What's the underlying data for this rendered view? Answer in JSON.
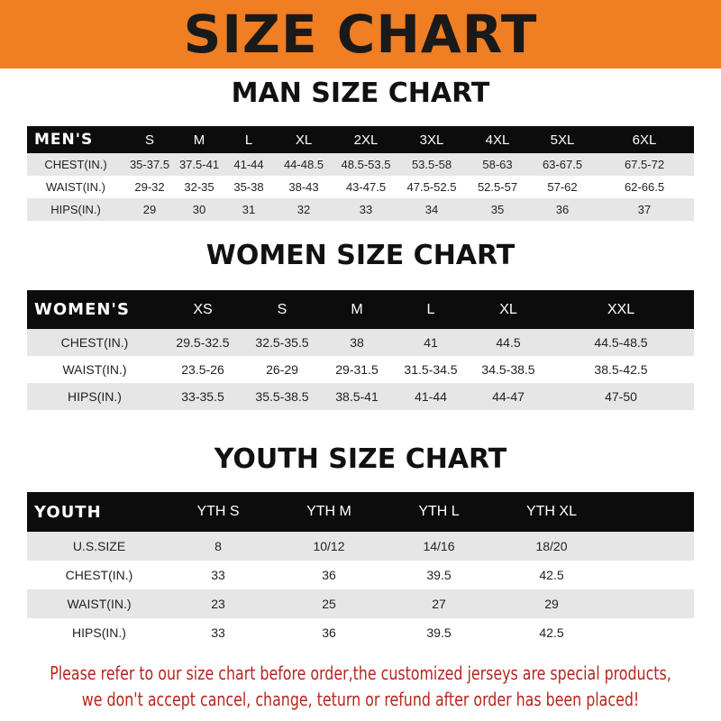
{
  "banner": "SIZE CHART",
  "men": {
    "title": "MAN SIZE CHART",
    "header": [
      "MEN'S",
      "S",
      "M",
      "L",
      "XL",
      "2XL",
      "3XL",
      "4XL",
      "5XL",
      "6XL"
    ],
    "rows": [
      [
        "CHEST(IN.)",
        "35-37.5",
        "37.5-41",
        "41-44",
        "44-48.5",
        "48.5-53.5",
        "53.5-58",
        "58-63",
        "63-67.5",
        "67.5-72"
      ],
      [
        "WAIST(IN.)",
        "29-32",
        "32-35",
        "35-38",
        "38-43",
        "43-47.5",
        "47.5-52.5",
        "52.5-57",
        "57-62",
        "62-66.5"
      ],
      [
        "HIPS(IN.)",
        "29",
        "30",
        "31",
        "32",
        "33",
        "34",
        "35",
        "36",
        "37"
      ]
    ]
  },
  "women": {
    "title": "WOMEN SIZE CHART",
    "header": [
      "WOMEN'S",
      "XS",
      "S",
      "M",
      "L",
      "XL",
      "XXL"
    ],
    "rows": [
      [
        "CHEST(IN.)",
        "29.5-32.5",
        "32.5-35.5",
        "38",
        "41",
        "44.5",
        "44.5-48.5"
      ],
      [
        "WAIST(IN.)",
        "23.5-26",
        "26-29",
        "29-31.5",
        "31.5-34.5",
        "34.5-38.5",
        "38.5-42.5"
      ],
      [
        "HIPS(IN.)",
        "33-35.5",
        "35.5-38.5",
        "38.5-41",
        "41-44",
        "44-47",
        "47-50"
      ]
    ]
  },
  "youth": {
    "title": "YOUTH SIZE CHART",
    "header": [
      "YOUTH",
      "YTH S",
      "YTH M",
      "YTH L",
      "YTH XL"
    ],
    "rows": [
      [
        "U.S.SIZE",
        "8",
        "10/12",
        "14/16",
        "18/20"
      ],
      [
        "CHEST(IN.)",
        "33",
        "36",
        "39.5",
        "42.5"
      ],
      [
        "WAIST(IN.)",
        "23",
        "25",
        "27",
        "29"
      ],
      [
        "HIPS(IN.)",
        "33",
        "36",
        "39.5",
        "42.5"
      ]
    ]
  },
  "note": {
    "line1": "Please refer to our size chart before order,the customized jerseys are special products,",
    "line2": "we don't accept cancel, change, teturn or refund after order has been placed!"
  },
  "colors": {
    "banner": "#f07e23",
    "header_row": "#0c0c0c",
    "stripe": "#e6e6e6",
    "note": "#b5261e"
  }
}
